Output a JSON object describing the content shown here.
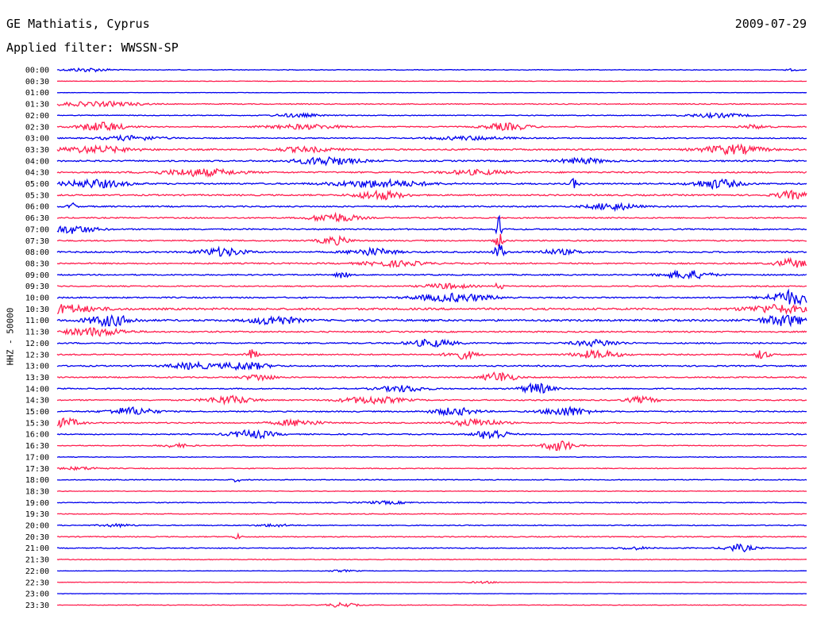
{
  "header": {
    "station": "GE Mathiatis, Cyprus",
    "date": "2009-07-29",
    "filter": "Applied filter: WWSSN-SP"
  },
  "chart_data": {
    "type": "line",
    "title": "GE Mathiatis, Cyprus",
    "subtitle": "Applied filter: WWSSN-SP",
    "date": "2009-07-29",
    "ylabel": "HHZ - 50000",
    "xlabel": "",
    "grid": false,
    "colors": [
      "#0000ee",
      "#ff1f4f"
    ],
    "rows": [
      {
        "label": "00:00",
        "noise": 0.25,
        "events": [
          [
            0.04,
            0.4,
            0.03
          ],
          [
            0.98,
            0.2,
            0.01
          ]
        ]
      },
      {
        "label": "00:30",
        "noise": 0.2,
        "events": []
      },
      {
        "label": "01:00",
        "noise": 0.15,
        "events": []
      },
      {
        "label": "01:30",
        "noise": 0.35,
        "events": [
          [
            0.03,
            0.35,
            0.05
          ],
          [
            0.08,
            0.3,
            0.04
          ]
        ]
      },
      {
        "label": "02:00",
        "noise": 0.3,
        "events": [
          [
            0.32,
            0.4,
            0.03
          ],
          [
            0.88,
            0.45,
            0.04
          ]
        ]
      },
      {
        "label": "02:30",
        "noise": 0.4,
        "events": [
          [
            0.06,
            1.0,
            0.03
          ],
          [
            0.33,
            0.5,
            0.05
          ],
          [
            0.6,
            0.8,
            0.03
          ],
          [
            0.93,
            0.4,
            0.02
          ]
        ]
      },
      {
        "label": "03:00",
        "noise": 0.4,
        "events": [
          [
            0.1,
            0.5,
            0.04
          ],
          [
            0.55,
            0.4,
            0.05
          ]
        ]
      },
      {
        "label": "03:30",
        "noise": 0.55,
        "events": [
          [
            0.05,
            0.7,
            0.05
          ],
          [
            0.33,
            0.5,
            0.04
          ],
          [
            0.9,
            1.0,
            0.04
          ]
        ]
      },
      {
        "label": "04:00",
        "noise": 0.55,
        "events": [
          [
            0.36,
            0.9,
            0.04
          ],
          [
            0.7,
            0.6,
            0.03
          ]
        ]
      },
      {
        "label": "04:30",
        "noise": 0.55,
        "events": [
          [
            0.19,
            0.8,
            0.05
          ],
          [
            0.56,
            0.5,
            0.04
          ]
        ]
      },
      {
        "label": "05:00",
        "noise": 0.55,
        "events": [
          [
            0.05,
            0.9,
            0.04
          ],
          [
            0.43,
            0.8,
            0.06
          ],
          [
            0.69,
            1.2,
            0.005
          ],
          [
            0.88,
            1.0,
            0.03
          ]
        ]
      },
      {
        "label": "05:30",
        "noise": 0.55,
        "events": [
          [
            0.43,
            1.0,
            0.03
          ],
          [
            0.98,
            0.9,
            0.02
          ]
        ]
      },
      {
        "label": "06:00",
        "noise": 0.5,
        "events": [
          [
            0.02,
            0.9,
            0.005
          ],
          [
            0.74,
            0.8,
            0.03
          ]
        ]
      },
      {
        "label": "06:30",
        "noise": 0.45,
        "events": [
          [
            0.37,
            1.0,
            0.03
          ]
        ]
      },
      {
        "label": "07:00",
        "noise": 0.5,
        "events": [
          [
            0.02,
            0.9,
            0.03
          ],
          [
            0.59,
            3.0,
            0.004
          ]
        ]
      },
      {
        "label": "07:30",
        "noise": 0.45,
        "events": [
          [
            0.37,
            0.9,
            0.02
          ],
          [
            0.59,
            1.5,
            0.006
          ]
        ]
      },
      {
        "label": "08:00",
        "noise": 0.55,
        "events": [
          [
            0.22,
            0.9,
            0.03
          ],
          [
            0.42,
            0.8,
            0.03
          ],
          [
            0.59,
            2.2,
            0.006
          ],
          [
            0.67,
            0.5,
            0.03
          ]
        ]
      },
      {
        "label": "08:30",
        "noise": 0.5,
        "events": [
          [
            0.45,
            0.6,
            0.04
          ],
          [
            0.98,
            1.0,
            0.02
          ]
        ]
      },
      {
        "label": "09:00",
        "noise": 0.45,
        "events": [
          [
            0.38,
            0.8,
            0.008
          ],
          [
            0.84,
            1.0,
            0.03
          ]
        ]
      },
      {
        "label": "09:30",
        "noise": 0.4,
        "events": [
          [
            0.52,
            0.6,
            0.03
          ],
          [
            0.59,
            1.6,
            0.004
          ]
        ]
      },
      {
        "label": "10:00",
        "noise": 0.5,
        "events": [
          [
            0.53,
            0.9,
            0.05
          ],
          [
            0.98,
            1.6,
            0.03
          ]
        ]
      },
      {
        "label": "10:30",
        "noise": 0.75,
        "events": [
          [
            0.0,
            1.0,
            0.05
          ],
          [
            0.96,
            0.9,
            0.04
          ]
        ]
      },
      {
        "label": "11:00",
        "noise": 0.7,
        "events": [
          [
            0.07,
            1.2,
            0.03
          ],
          [
            0.29,
            1.0,
            0.03
          ],
          [
            0.97,
            1.2,
            0.03
          ]
        ]
      },
      {
        "label": "11:30",
        "noise": 0.5,
        "events": [
          [
            0.05,
            0.9,
            0.04
          ]
        ]
      },
      {
        "label": "12:00",
        "noise": 0.5,
        "events": [
          [
            0.5,
            0.8,
            0.03
          ],
          [
            0.72,
            0.7,
            0.03
          ]
        ]
      },
      {
        "label": "12:30",
        "noise": 0.45,
        "events": [
          [
            0.26,
            1.2,
            0.008
          ],
          [
            0.54,
            0.9,
            0.02
          ],
          [
            0.72,
            0.9,
            0.03
          ],
          [
            0.94,
            1.0,
            0.01
          ]
        ]
      },
      {
        "label": "13:00",
        "noise": 0.5,
        "events": [
          [
            0.18,
            0.7,
            0.03
          ],
          [
            0.25,
            0.9,
            0.03
          ]
        ]
      },
      {
        "label": "13:30",
        "noise": 0.45,
        "events": [
          [
            0.27,
            0.7,
            0.02
          ],
          [
            0.59,
            1.2,
            0.02
          ]
        ]
      },
      {
        "label": "14:00",
        "noise": 0.45,
        "events": [
          [
            0.46,
            0.7,
            0.03
          ],
          [
            0.64,
            1.2,
            0.02
          ]
        ]
      },
      {
        "label": "14:30",
        "noise": 0.45,
        "events": [
          [
            0.23,
            0.9,
            0.03
          ],
          [
            0.42,
            0.8,
            0.04
          ],
          [
            0.78,
            0.7,
            0.02
          ]
        ]
      },
      {
        "label": "15:00",
        "noise": 0.45,
        "events": [
          [
            0.1,
            0.9,
            0.03
          ],
          [
            0.53,
            0.8,
            0.03
          ],
          [
            0.68,
            1.0,
            0.03
          ]
        ]
      },
      {
        "label": "15:30",
        "noise": 0.45,
        "events": [
          [
            0.01,
            1.0,
            0.02
          ],
          [
            0.32,
            0.7,
            0.03
          ],
          [
            0.56,
            0.9,
            0.03
          ]
        ]
      },
      {
        "label": "16:00",
        "noise": 0.4,
        "events": [
          [
            0.26,
            0.9,
            0.03
          ],
          [
            0.58,
            1.3,
            0.02
          ]
        ]
      },
      {
        "label": "16:30",
        "noise": 0.3,
        "events": [
          [
            0.67,
            1.2,
            0.02
          ],
          [
            0.16,
            0.4,
            0.02
          ]
        ]
      },
      {
        "label": "17:00",
        "noise": 0.25,
        "events": []
      },
      {
        "label": "17:30",
        "noise": 0.3,
        "events": [
          [
            0.03,
            0.3,
            0.03
          ]
        ]
      },
      {
        "label": "18:00",
        "noise": 0.3,
        "events": [
          [
            0.24,
            0.5,
            0.005
          ]
        ]
      },
      {
        "label": "18:30",
        "noise": 0.25,
        "events": []
      },
      {
        "label": "19:00",
        "noise": 0.3,
        "events": [
          [
            0.44,
            0.3,
            0.03
          ]
        ]
      },
      {
        "label": "19:30",
        "noise": 0.3,
        "events": []
      },
      {
        "label": "20:00",
        "noise": 0.35,
        "events": [
          [
            0.08,
            0.3,
            0.02
          ],
          [
            0.29,
            0.3,
            0.02
          ]
        ]
      },
      {
        "label": "20:30",
        "noise": 0.35,
        "events": [
          [
            0.24,
            0.6,
            0.005
          ]
        ]
      },
      {
        "label": "21:00",
        "noise": 0.35,
        "events": [
          [
            0.91,
            0.8,
            0.02
          ],
          [
            0.77,
            0.3,
            0.02
          ]
        ]
      },
      {
        "label": "21:30",
        "noise": 0.3,
        "events": []
      },
      {
        "label": "22:00",
        "noise": 0.15,
        "events": [
          [
            0.38,
            0.2,
            0.02
          ]
        ]
      },
      {
        "label": "22:30",
        "noise": 0.2,
        "events": [
          [
            0.57,
            0.2,
            0.02
          ]
        ]
      },
      {
        "label": "23:00",
        "noise": 0.15,
        "events": []
      },
      {
        "label": "23:30",
        "noise": 0.2,
        "events": [
          [
            0.38,
            0.5,
            0.02
          ]
        ]
      }
    ]
  }
}
